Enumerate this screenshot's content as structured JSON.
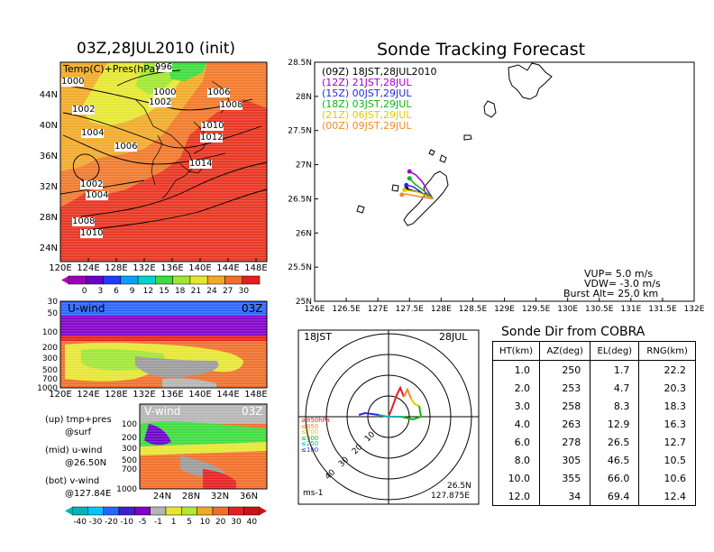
{
  "left_top": {
    "title": "03Z,28JUL2010 (init)",
    "field_label": "Temp(C)+Pres(hPa)",
    "x_ticks": [
      "120E",
      "124E",
      "128E",
      "132E",
      "136E",
      "140E",
      "144E",
      "148E"
    ],
    "y_ticks": [
      "24N",
      "28N",
      "32N",
      "36N",
      "40N",
      "44N"
    ],
    "isobar_labels": [
      "1000",
      "1000",
      "1002",
      "1002",
      "1004",
      "1006",
      "1002",
      "1004",
      "1008",
      "1010",
      "1006",
      "1008",
      "1010",
      "1012",
      "1014",
      "996"
    ],
    "colorbar_labels": [
      "0",
      "3",
      "6",
      "9",
      "12",
      "15",
      "18",
      "21",
      "24",
      "27",
      "30"
    ],
    "colorbar_colors": [
      "#9b00b5",
      "#6a00c8",
      "#1f3cff",
      "#0aa0ff",
      "#00d2d2",
      "#3cdc3c",
      "#a0e632",
      "#e6e632",
      "#f0aa28",
      "#f06e28",
      "#e61e1e"
    ]
  },
  "left_mid": {
    "label": "U-wind",
    "time": "03Z",
    "y_ticks": [
      "30",
      "50",
      "100",
      "200",
      "300",
      "500",
      "700",
      "1000"
    ],
    "x_ticks": [
      "120E",
      "124E",
      "128E",
      "132E",
      "136E",
      "140E",
      "144E",
      "148E"
    ]
  },
  "left_bot": {
    "label": "V-wind",
    "time": "03Z",
    "y_ticks": [
      "100",
      "200",
      "300",
      "500",
      "700",
      "1000"
    ],
    "x_ticks": [
      "24N",
      "28N",
      "32N",
      "36N"
    ],
    "colorbar_labels": [
      "-40",
      "-30",
      "-20",
      "-10",
      "-5",
      "-1",
      "1",
      "5",
      "10",
      "20",
      "30",
      "40"
    ],
    "colorbar_colors": [
      "#00b4b4",
      "#00c8ff",
      "#2864ff",
      "#4020c8",
      "#8000c8",
      "#b4b4b4",
      "#e6e632",
      "#b4e632",
      "#f0aa28",
      "#f06e28",
      "#e61e1e",
      "#c81414"
    ]
  },
  "legend_notes": [
    "(up) tmp+pres",
    "@surf",
    "(mid) u-wind",
    "@26.50N",
    "(bot) v-wind",
    "@127.84E"
  ],
  "tracking": {
    "title": "Sonde Tracking Forecast",
    "x_ticks": [
      "126E",
      "126.5E",
      "127E",
      "127.5E",
      "128E",
      "128.5E",
      "129E",
      "129.5E",
      "130E",
      "130.5E",
      "131E",
      "131.5E",
      "132E"
    ],
    "y_ticks": [
      "25N",
      "25.5N",
      "26N",
      "26.5N",
      "27N",
      "27.5N",
      "28N",
      "28.5N"
    ],
    "launches": [
      {
        "label": "(09Z)  18JST,28JUL2010",
        "color": "#000000"
      },
      {
        "label": "(12Z)  21JST,28JUL",
        "color": "#a000c8"
      },
      {
        "label": "(15Z)  00JST,29JUL",
        "color": "#2828e6"
      },
      {
        "label": "(18Z)  03JST,29JUL",
        "color": "#14b414"
      },
      {
        "label": "(21Z)  06JST,29JUL",
        "color": "#e6c800"
      },
      {
        "label": "(00Z)  09JST,29JUL",
        "color": "#f08c28"
      }
    ],
    "vup": "VUP=  5.0  m/s",
    "vdw": "VDW= -3.0  m/s",
    "burst": "Burst Alt=  25.0  km"
  },
  "hodo": {
    "left_label": "18JST",
    "right_label": "28JUL",
    "ring_labels": [
      "10",
      "20",
      "30",
      "40"
    ],
    "pressure_labels": [
      {
        "text": "≥850hPa",
        "color": "#e61e1e"
      },
      {
        "text": "≤850",
        "color": "#f08c28"
      },
      {
        "text": "≤700",
        "color": "#e6c800"
      },
      {
        "text": "≤500",
        "color": "#14b414"
      },
      {
        "text": "≤250",
        "color": "#00b4b4"
      },
      {
        "text": "≤100",
        "color": "#2828e6"
      }
    ],
    "units": "ms-1",
    "lat": "26.5N",
    "lon": "127.875E"
  },
  "sonde_table": {
    "title": "Sonde Dir from COBRA",
    "headers": [
      "HT(km)",
      "AZ(deg)",
      "EL(deg)",
      "RNG(km)"
    ],
    "rows": [
      [
        "1.0",
        "250",
        "1.7",
        "22.2"
      ],
      [
        "2.0",
        "253",
        "4.7",
        "20.3"
      ],
      [
        "3.0",
        "258",
        "8.3",
        "18.3"
      ],
      [
        "4.0",
        "263",
        "12.9",
        "16.3"
      ],
      [
        "6.0",
        "278",
        "26.5",
        "12.7"
      ],
      [
        "8.0",
        "305",
        "46.5",
        "10.5"
      ],
      [
        "10.0",
        "355",
        "66.0",
        "10.6"
      ],
      [
        "12.0",
        "34",
        "69.4",
        "12.4"
      ]
    ]
  },
  "chart_data": [
    {
      "type": "table",
      "title": "Sonde Dir from COBRA",
      "columns": [
        "HT(km)",
        "AZ(deg)",
        "EL(deg)",
        "RNG(km)"
      ],
      "rows": [
        [
          1.0,
          250,
          1.7,
          22.2
        ],
        [
          2.0,
          253,
          4.7,
          20.3
        ],
        [
          3.0,
          258,
          8.3,
          18.3
        ],
        [
          4.0,
          263,
          12.9,
          16.3
        ],
        [
          6.0,
          278,
          26.5,
          12.7
        ],
        [
          8.0,
          305,
          46.5,
          10.5
        ],
        [
          10.0,
          355,
          66.0,
          10.6
        ],
        [
          12.0,
          34,
          69.4,
          12.4
        ]
      ]
    },
    {
      "type": "line",
      "title": "Sonde Tracking Forecast",
      "xlim": [
        126,
        132
      ],
      "ylim": [
        25,
        28.5
      ],
      "series": [
        {
          "name": "(09Z)  18JST,28JUL2010",
          "color": "#000000",
          "x": [
            127.87,
            127.78,
            127.65,
            127.55,
            127.45
          ],
          "y": [
            26.5,
            26.55,
            26.6,
            26.62,
            26.65
          ]
        },
        {
          "name": "(12Z)  21JST,28JUL",
          "color": "#a000c8",
          "x": [
            127.87,
            127.8,
            127.7,
            127.6,
            127.5
          ],
          "y": [
            26.5,
            26.6,
            26.75,
            26.85,
            26.9
          ]
        },
        {
          "name": "(15Z)  00JST,29JUL",
          "color": "#2828e6",
          "x": [
            127.87,
            127.75,
            127.65,
            127.55,
            127.45
          ],
          "y": [
            26.5,
            26.55,
            26.62,
            26.68,
            26.7
          ]
        },
        {
          "name": "(18Z)  03JST,29JUL",
          "color": "#14b414",
          "x": [
            127.87,
            127.78,
            127.68,
            127.58,
            127.5
          ],
          "y": [
            26.5,
            26.58,
            26.65,
            26.72,
            26.8
          ]
        },
        {
          "name": "(21Z)  06JST,29JUL",
          "color": "#e6c800",
          "x": [
            127.87,
            127.76,
            127.62,
            127.5,
            127.42
          ],
          "y": [
            26.5,
            26.55,
            26.6,
            26.62,
            26.63
          ]
        },
        {
          "name": "(00Z)  09JST,29JUL",
          "color": "#f08c28",
          "x": [
            127.87,
            127.72,
            127.56,
            127.45,
            127.38
          ],
          "y": [
            26.5,
            26.52,
            26.55,
            26.57,
            26.56
          ]
        }
      ]
    }
  ]
}
